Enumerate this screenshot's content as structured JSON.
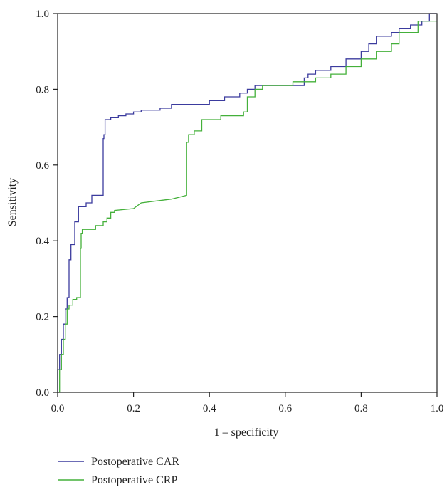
{
  "chart_data": {
    "type": "line",
    "xlabel": "1 – specificity",
    "ylabel": "Sensitivity",
    "xlim": [
      0,
      1
    ],
    "ylim": [
      0,
      1
    ],
    "xticks": [
      "0.0",
      "0.2",
      "0.4",
      "0.6",
      "0.8",
      "1.0"
    ],
    "yticks": [
      "0.0",
      "0.2",
      "0.4",
      "0.6",
      "0.8",
      "1.0"
    ],
    "grid": false,
    "legend_position": "bottom-left",
    "series": [
      {
        "name": "Postoperative CAR",
        "color": "#3b3b9e",
        "x": [
          0,
          0,
          0.005,
          0.005,
          0.01,
          0.01,
          0.015,
          0.015,
          0.02,
          0.02,
          0.025,
          0.025,
          0.03,
          0.03,
          0.035,
          0.035,
          0.045,
          0.045,
          0.055,
          0.055,
          0.06,
          0.06,
          0.075,
          0.075,
          0.09,
          0.09,
          0.095,
          0.095,
          0.12,
          0.12,
          0.122,
          0.122,
          0.125,
          0.125,
          0.14,
          0.14,
          0.16,
          0.16,
          0.18,
          0.18,
          0.2,
          0.2,
          0.22,
          0.22,
          0.27,
          0.27,
          0.3,
          0.3,
          0.4,
          0.4,
          0.44,
          0.44,
          0.48,
          0.48,
          0.5,
          0.5,
          0.52,
          0.52,
          0.55,
          0.55,
          0.65,
          0.65,
          0.66,
          0.66,
          0.68,
          0.68,
          0.72,
          0.72,
          0.76,
          0.76,
          0.8,
          0.8,
          0.82,
          0.82,
          0.84,
          0.84,
          0.88,
          0.88,
          0.9,
          0.9,
          0.93,
          0.93,
          0.96,
          0.96,
          0.98,
          0.98,
          1.0
        ],
        "y": [
          0,
          0.06,
          0.06,
          0.1,
          0.1,
          0.14,
          0.14,
          0.18,
          0.18,
          0.22,
          0.22,
          0.25,
          0.25,
          0.35,
          0.35,
          0.39,
          0.39,
          0.45,
          0.45,
          0.49,
          0.49,
          0.49,
          0.49,
          0.5,
          0.5,
          0.52,
          0.52,
          0.52,
          0.52,
          0.67,
          0.67,
          0.68,
          0.68,
          0.72,
          0.72,
          0.725,
          0.725,
          0.73,
          0.73,
          0.735,
          0.735,
          0.74,
          0.74,
          0.745,
          0.745,
          0.75,
          0.75,
          0.76,
          0.76,
          0.77,
          0.77,
          0.78,
          0.78,
          0.79,
          0.79,
          0.8,
          0.8,
          0.81,
          0.81,
          0.81,
          0.81,
          0.83,
          0.83,
          0.84,
          0.84,
          0.85,
          0.85,
          0.86,
          0.86,
          0.88,
          0.88,
          0.9,
          0.9,
          0.92,
          0.92,
          0.94,
          0.94,
          0.95,
          0.95,
          0.96,
          0.96,
          0.97,
          0.97,
          0.98,
          0.98,
          1.0,
          1.0
        ]
      },
      {
        "name": "Postoperative CRP",
        "color": "#44b03a",
        "x": [
          0,
          0.005,
          0.005,
          0.01,
          0.01,
          0.015,
          0.015,
          0.02,
          0.02,
          0.025,
          0.025,
          0.03,
          0.03,
          0.04,
          0.04,
          0.05,
          0.05,
          0.06,
          0.06,
          0.062,
          0.062,
          0.065,
          0.065,
          0.075,
          0.075,
          0.1,
          0.1,
          0.12,
          0.12,
          0.13,
          0.13,
          0.14,
          0.14,
          0.15,
          0.15,
          0.2,
          0.22,
          0.3,
          0.34,
          0.34,
          0.345,
          0.345,
          0.36,
          0.36,
          0.38,
          0.38,
          0.43,
          0.43,
          0.49,
          0.49,
          0.5,
          0.5,
          0.52,
          0.52,
          0.54,
          0.54,
          0.62,
          0.62,
          0.68,
          0.68,
          0.72,
          0.72,
          0.76,
          0.76,
          0.8,
          0.8,
          0.84,
          0.84,
          0.88,
          0.88,
          0.9,
          0.9,
          0.95,
          0.95,
          1.0
        ],
        "y": [
          0,
          0,
          0.06,
          0.06,
          0.1,
          0.1,
          0.14,
          0.14,
          0.18,
          0.18,
          0.22,
          0.22,
          0.23,
          0.23,
          0.245,
          0.245,
          0.25,
          0.25,
          0.38,
          0.38,
          0.42,
          0.42,
          0.43,
          0.43,
          0.43,
          0.43,
          0.44,
          0.44,
          0.45,
          0.45,
          0.46,
          0.46,
          0.475,
          0.475,
          0.48,
          0.485,
          0.5,
          0.51,
          0.52,
          0.66,
          0.66,
          0.68,
          0.68,
          0.69,
          0.69,
          0.72,
          0.72,
          0.73,
          0.73,
          0.74,
          0.74,
          0.78,
          0.78,
          0.8,
          0.8,
          0.81,
          0.81,
          0.82,
          0.82,
          0.83,
          0.83,
          0.84,
          0.84,
          0.86,
          0.86,
          0.88,
          0.88,
          0.9,
          0.9,
          0.92,
          0.92,
          0.95,
          0.95,
          0.98,
          0.98
        ]
      }
    ]
  }
}
